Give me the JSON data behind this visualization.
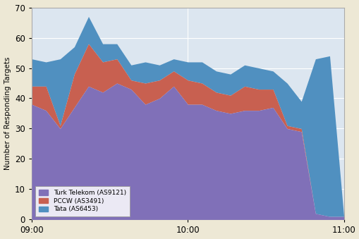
{
  "background_color": "#ede8d5",
  "plot_bg_color": "#dce6f0",
  "ylabel": "Number of Responding Targets",
  "ylim": [
    0,
    70
  ],
  "yticks": [
    0,
    10,
    20,
    30,
    40,
    50,
    60,
    70
  ],
  "xtick_labels": [
    "09:00",
    "10:00",
    "11:00"
  ],
  "x": [
    0,
    1,
    2,
    3,
    4,
    5,
    6,
    7,
    8,
    9,
    10,
    11,
    12,
    13,
    14,
    15,
    16,
    17,
    18,
    19,
    20,
    21,
    22
  ],
  "turk": [
    38,
    36,
    30,
    37,
    44,
    42,
    45,
    43,
    38,
    40,
    44,
    38,
    38,
    36,
    35,
    36,
    36,
    37,
    30,
    29,
    2,
    1,
    1
  ],
  "pccw": [
    6,
    8,
    1,
    11,
    14,
    10,
    8,
    3,
    7,
    6,
    5,
    8,
    7,
    6,
    6,
    8,
    7,
    6,
    1,
    1,
    0,
    0,
    0
  ],
  "tata": [
    9,
    8,
    22,
    9,
    9,
    6,
    5,
    5,
    7,
    5,
    4,
    6,
    7,
    7,
    7,
    7,
    7,
    6,
    14,
    9,
    51,
    53,
    0
  ],
  "color_turk": "#8070b8",
  "color_pccw": "#c86050",
  "color_tata": "#5090c0",
  "legend_labels": [
    "Turk Telekom (AS9121)",
    "PCCW (AS3491)",
    "Tata (AS6453)"
  ],
  "xtick_positions": [
    0,
    11,
    22
  ],
  "xlim": [
    0,
    22
  ]
}
